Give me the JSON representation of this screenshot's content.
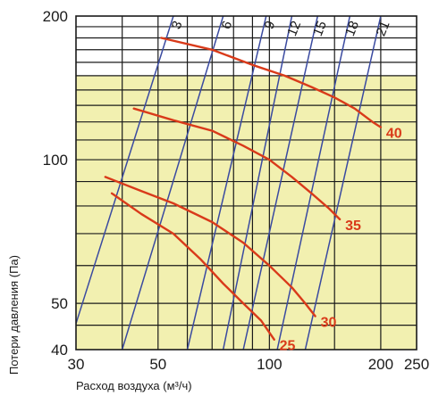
{
  "chart_data": {
    "type": "line",
    "xlabel": "Расход воздуха (м³/ч)",
    "ylabel": "Потери давления (Па)",
    "x_scale": "log",
    "y_scale": "log",
    "xlim": [
      30,
      250
    ],
    "ylim": [
      40,
      200
    ],
    "x_ticks": [
      30,
      50,
      100,
      200,
      250
    ],
    "x_tick_labels": [
      "30",
      "50",
      "100",
      "200",
      "250"
    ],
    "y_ticks": [
      40,
      50,
      100,
      200
    ],
    "y_tick_labels": [
      "40",
      "50",
      "100",
      "200"
    ],
    "grid": true,
    "colors": {
      "curve": "#d93a1a",
      "diagonal": "#3a4aa0",
      "grid": "#1a1a1a",
      "shade": "#f2f0b0",
      "plot_bg": "#ffffff"
    },
    "shade_region": {
      "y_from": 40,
      "y_to": 150
    },
    "diagonal_lines": [
      {
        "label": "3",
        "points": [
          [
            28.5,
            40
          ],
          [
            55,
            200
          ]
        ]
      },
      {
        "label": "6",
        "points": [
          [
            40,
            40
          ],
          [
            75,
            200
          ]
        ]
      },
      {
        "label": "9",
        "points": [
          [
            60,
            40
          ],
          [
            98,
            200
          ]
        ]
      },
      {
        "label": "12",
        "points": [
          [
            75,
            40
          ],
          [
            115,
            200
          ]
        ]
      },
      {
        "label": "15",
        "points": [
          [
            85,
            40
          ],
          [
            135,
            200
          ]
        ]
      },
      {
        "label": "18",
        "points": [
          [
            105,
            40
          ],
          [
            165,
            200
          ]
        ]
      },
      {
        "label": "21",
        "points": [
          [
            125,
            40
          ],
          [
            200,
            200
          ]
        ]
      }
    ],
    "series": [
      {
        "name": "40",
        "values": [
          [
            51,
            180
          ],
          [
            70,
            170
          ],
          [
            90,
            158
          ],
          [
            110,
            150
          ],
          [
            130,
            142
          ],
          [
            150,
            135
          ],
          [
            170,
            128
          ],
          [
            190,
            120
          ],
          [
            200,
            117
          ]
        ]
      },
      {
        "name": "35",
        "values": [
          [
            43,
            128
          ],
          [
            55,
            121
          ],
          [
            70,
            115
          ],
          [
            85,
            107
          ],
          [
            100,
            100
          ],
          [
            115,
            92
          ],
          [
            130,
            85
          ],
          [
            145,
            79
          ],
          [
            155,
            75
          ]
        ]
      },
      {
        "name": "30",
        "values": [
          [
            36,
            92
          ],
          [
            45,
            86
          ],
          [
            55,
            81
          ],
          [
            70,
            74
          ],
          [
            85,
            67
          ],
          [
            100,
            60
          ],
          [
            115,
            54
          ],
          [
            125,
            50
          ],
          [
            133,
            47
          ]
        ]
      },
      {
        "name": "25",
        "values": [
          [
            37.5,
            85
          ],
          [
            45,
            77
          ],
          [
            55,
            70
          ],
          [
            65,
            62
          ],
          [
            75,
            55
          ],
          [
            85,
            50
          ],
          [
            95,
            46
          ],
          [
            103,
            42
          ]
        ]
      }
    ]
  }
}
